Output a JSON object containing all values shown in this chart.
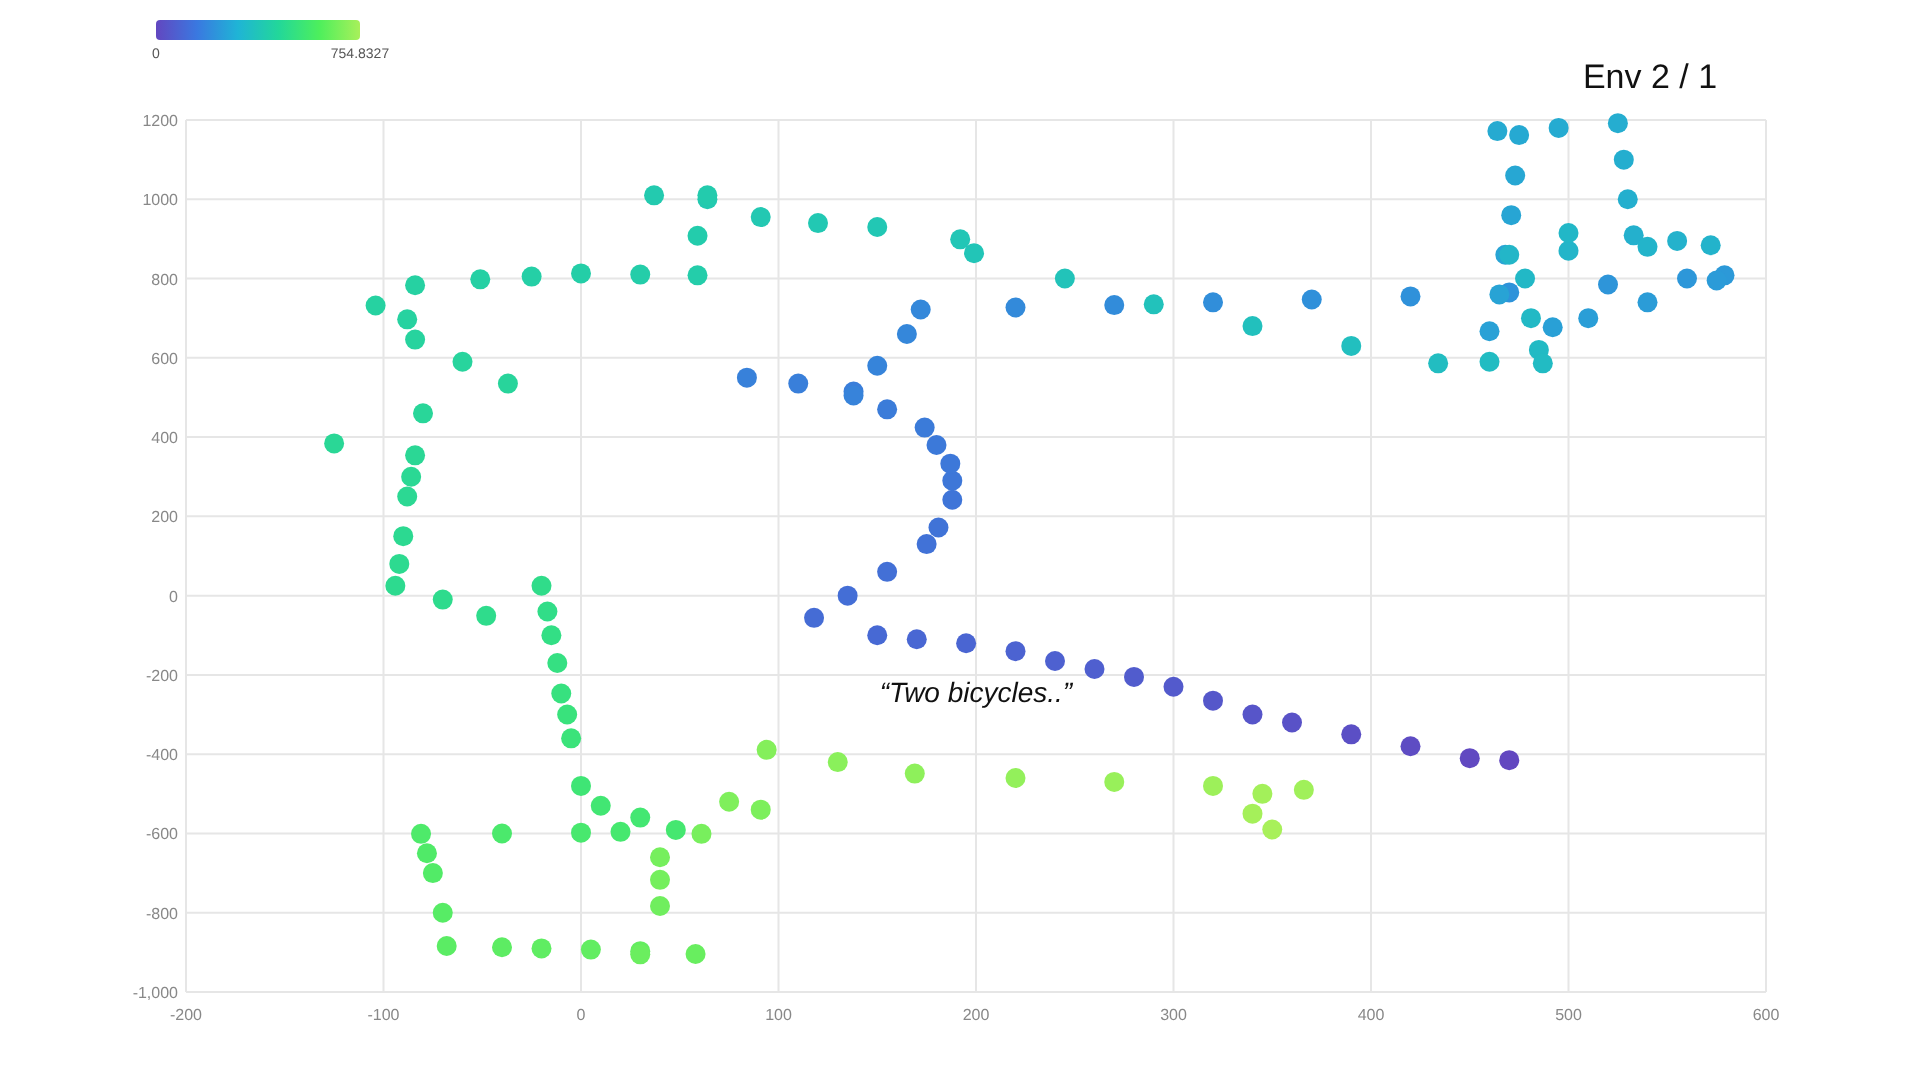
{
  "chart_data": {
    "type": "scatter",
    "title": "Env 2 / 1",
    "x": [
      470,
      450,
      420,
      390,
      360,
      340,
      320,
      300,
      280,
      260,
      240,
      220,
      195,
      170,
      150,
      118,
      135,
      155,
      175,
      181,
      188,
      188,
      187,
      180,
      174,
      155,
      138,
      110,
      84,
      138,
      150,
      165,
      172,
      220,
      270,
      320,
      370,
      420,
      470,
      520,
      560,
      579,
      575,
      540,
      510,
      492,
      460,
      465,
      468,
      471,
      473,
      475,
      464,
      495,
      525,
      528,
      530,
      533,
      555,
      572,
      540,
      500,
      470,
      500,
      478,
      481,
      485,
      487,
      460,
      434,
      390,
      340,
      290,
      245,
      199,
      192,
      150,
      120,
      91,
      64,
      37,
      64,
      59,
      59,
      30,
      0,
      -25,
      -51,
      -84,
      -104,
      -88,
      -84,
      -60,
      -37,
      -80,
      -125,
      -84,
      -86,
      -88,
      -90,
      -92,
      -94,
      -70,
      -48,
      -20,
      -17,
      -15,
      -12,
      -10,
      -7,
      -5,
      0,
      10,
      30,
      48,
      20,
      0,
      -40,
      -81,
      -78,
      -75,
      -70,
      -68,
      -40,
      -20,
      5,
      30,
      58,
      30,
      40,
      40,
      40,
      61,
      91,
      75,
      94,
      130,
      169,
      220,
      270,
      320,
      366,
      345,
      340,
      350
    ],
    "values": [
      -415,
      -410,
      -380,
      -350,
      -320,
      -300,
      -265,
      -230,
      -205,
      -185,
      -165,
      -140,
      -120,
      -110,
      -100,
      -56,
      0,
      60,
      130,
      172,
      242,
      290,
      333,
      380,
      424,
      470,
      515,
      535,
      550,
      505,
      580,
      660,
      722,
      727,
      733,
      740,
      747,
      755,
      765,
      785,
      800,
      808,
      795,
      740,
      700,
      677,
      667,
      760,
      860,
      960,
      1060,
      1162,
      1172,
      1180,
      1192,
      1100,
      1000,
      909,
      895,
      884,
      880,
      870,
      860,
      915,
      800,
      700,
      620,
      586,
      590,
      586,
      630,
      680,
      735,
      800,
      864,
      899,
      930,
      940,
      955,
      1000,
      1010,
      1010,
      908,
      808,
      810,
      813,
      805,
      798,
      783,
      732,
      697,
      646,
      590,
      535,
      460,
      384,
      354,
      300,
      250,
      150,
      80,
      25,
      -10,
      -51,
      25,
      -40,
      -100,
      -170,
      -247,
      -300,
      -360,
      -480,
      -530,
      -560,
      -591,
      -596,
      -598,
      -600,
      -601,
      -650,
      -700,
      -800,
      -884,
      -887,
      -890,
      -893,
      -897,
      -904,
      -905,
      -783,
      -717,
      -660,
      -601,
      -540,
      -520,
      -389,
      -420,
      -449,
      -460,
      -470,
      -480,
      -490,
      -500,
      -550,
      -590
    ],
    "cvalues": [
      0,
      5,
      15,
      25,
      35,
      42,
      50,
      58,
      65,
      72,
      78,
      85,
      92,
      98,
      104,
      112,
      117,
      122,
      128,
      132,
      138,
      142,
      146,
      150,
      154,
      158,
      162,
      166,
      170,
      175,
      180,
      186,
      190,
      195,
      200,
      205,
      210,
      215,
      220,
      225,
      230,
      236,
      240,
      245,
      250,
      254,
      258,
      262,
      266,
      270,
      275,
      280,
      284,
      288,
      292,
      296,
      300,
      304,
      308,
      312,
      316,
      320,
      323,
      326,
      330,
      334,
      338,
      341,
      345,
      349,
      355,
      360,
      366,
      372,
      378,
      381,
      386,
      389,
      392,
      396,
      400,
      403,
      407,
      411,
      415,
      419,
      423,
      427,
      431,
      435,
      438,
      441,
      445,
      449,
      455,
      461,
      465,
      468,
      470,
      475,
      478,
      480,
      484,
      488,
      492,
      498,
      505,
      512,
      520,
      528,
      535,
      548,
      555,
      560,
      565,
      568,
      572,
      580,
      588,
      593,
      598,
      608,
      616,
      621,
      626,
      631,
      636,
      644,
      650,
      658,
      665,
      669,
      673,
      680,
      685,
      695,
      705,
      712,
      720,
      728,
      736,
      742,
      746,
      750,
      754.8327
    ],
    "clim": [
      0,
      754.8327
    ],
    "cticks": [
      0,
      754.8327
    ],
    "xlim": [
      -200,
      600
    ],
    "xticks": [
      -200,
      -100,
      0,
      100,
      200,
      300,
      400,
      500,
      600
    ],
    "ylim": [
      -1000,
      1200
    ],
    "yticks": [
      {
        "value": -1000,
        "label": "-1,000"
      },
      -800,
      -600,
      -400,
      -200,
      0,
      200,
      400,
      600,
      800,
      1000,
      1200
    ],
    "grid": true,
    "marker": "circle",
    "annotations": [
      "“Two bicycles..”"
    ]
  }
}
